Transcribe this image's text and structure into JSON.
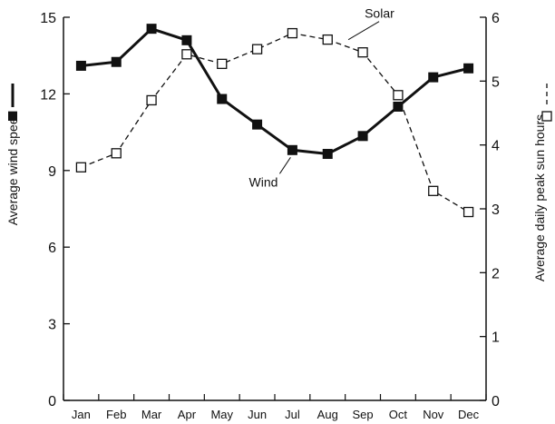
{
  "chart_data": {
    "type": "line",
    "categories": [
      "Jan",
      "Feb",
      "Mar",
      "Apr",
      "May",
      "Jun",
      "Jul",
      "Aug",
      "Sep",
      "Oct",
      "Nov",
      "Dec"
    ],
    "left_axis": {
      "label": "Average wind speed",
      "range": [
        0,
        15
      ],
      "ticks": [
        "0",
        "3",
        "6",
        "9",
        "12",
        "15"
      ]
    },
    "right_axis": {
      "label": "Average daily peak sun hours",
      "range": [
        0,
        6
      ],
      "ticks": [
        "0",
        "1",
        "2",
        "3",
        "4",
        "5",
        "6"
      ]
    },
    "series": [
      {
        "name": "Wind",
        "axis": "left",
        "style": "solid",
        "marker": "filled-square",
        "values": [
          13.1,
          13.25,
          14.55,
          14.1,
          11.8,
          10.8,
          9.8,
          9.65,
          10.35,
          11.5,
          12.65,
          13.0
        ]
      },
      {
        "name": "Solar",
        "axis": "right",
        "style": "dashed",
        "marker": "open-square",
        "values": [
          3.65,
          3.87,
          4.7,
          5.42,
          5.27,
          5.5,
          5.75,
          5.65,
          5.45,
          4.78,
          3.28,
          2.95
        ]
      }
    ],
    "annotations": [
      {
        "text": "Wind",
        "series": "Wind",
        "point_index": 6
      },
      {
        "text": "Solar",
        "series": "Solar",
        "point_index": 8
      }
    ],
    "grid": false,
    "legend": "axis-titles"
  }
}
